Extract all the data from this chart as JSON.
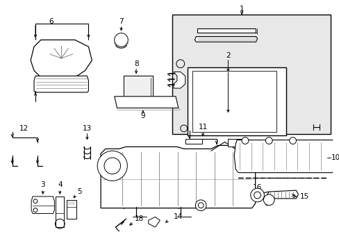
{
  "bg_color": "#ffffff",
  "lc": "#000000",
  "gray_box": "#e8e8e8",
  "fig_w": 4.89,
  "fig_h": 3.6,
  "dpi": 100
}
